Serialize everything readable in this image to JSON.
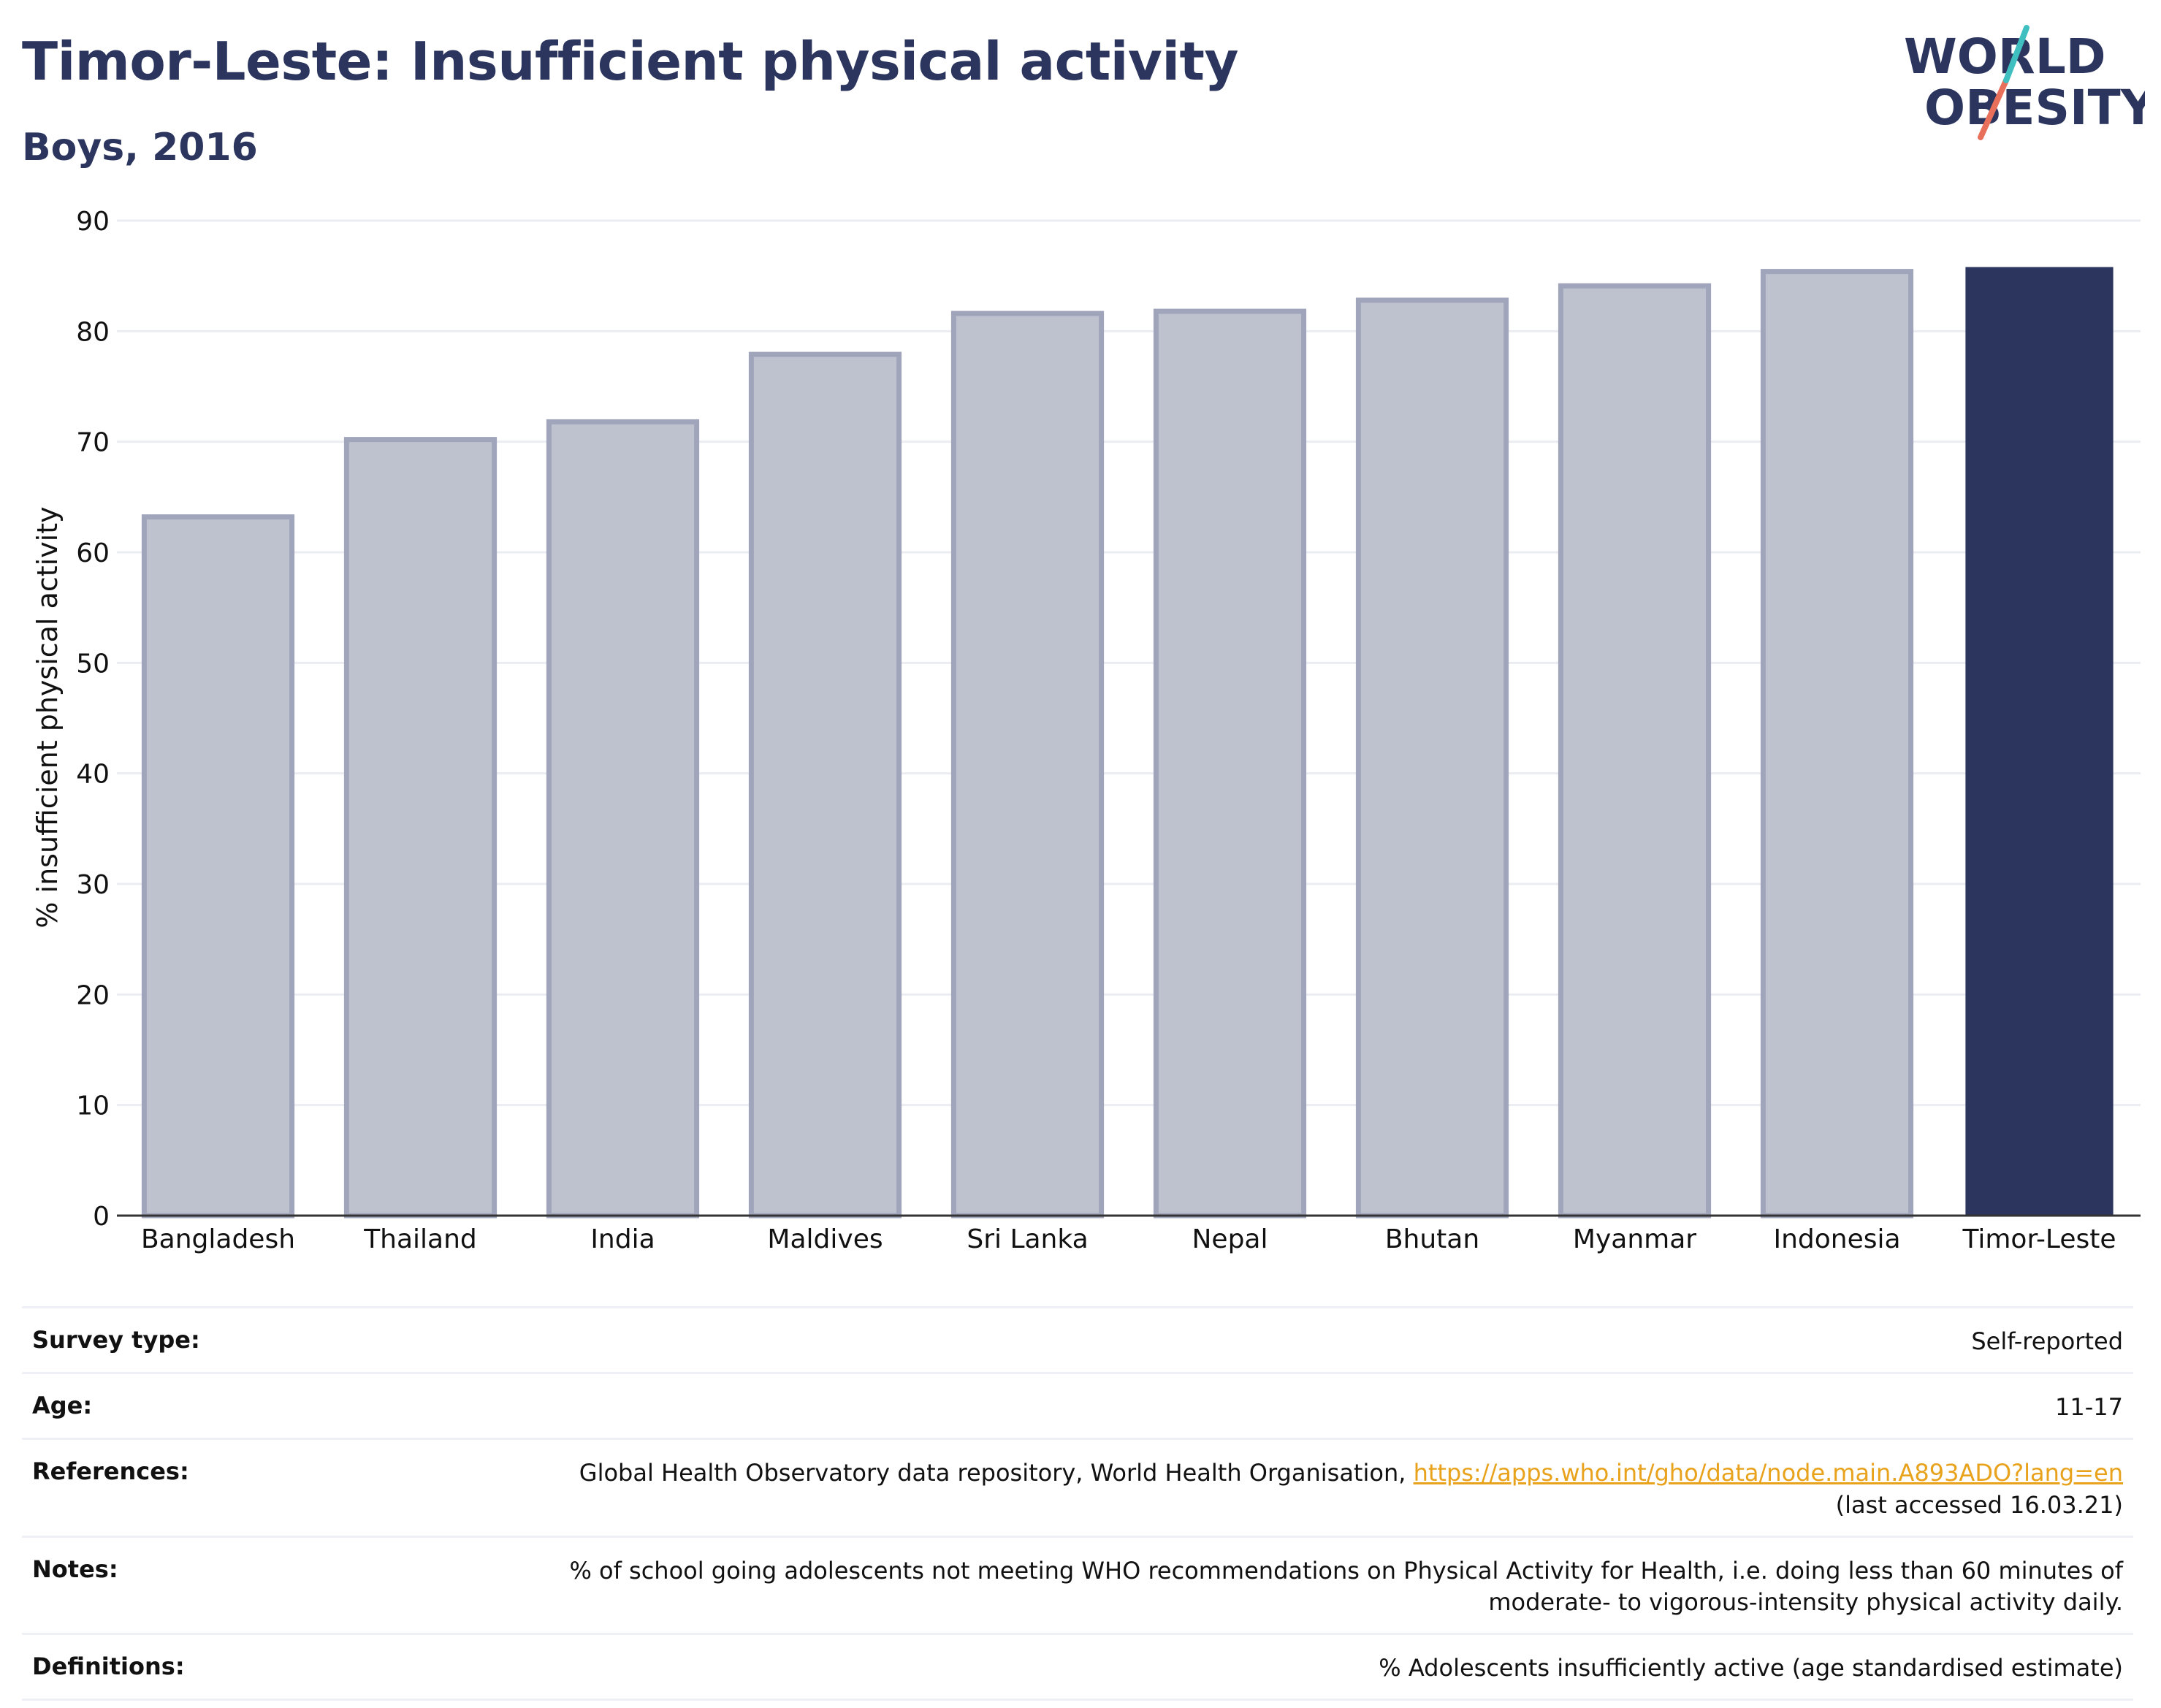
{
  "header": {
    "title": "Timor-Leste: Insufficient physical activity",
    "subtitle": "Boys, 2016"
  },
  "logo": {
    "line1": "WORLD",
    "line2": "OBESITY"
  },
  "chart_data": {
    "type": "bar",
    "categories": [
      "Bangladesh",
      "Thailand",
      "India",
      "Maldives",
      "Sri Lanka",
      "Nepal",
      "Bhutan",
      "Myanmar",
      "Indonesia",
      "Timor-Leste"
    ],
    "values": [
      63.2,
      70.2,
      71.8,
      77.9,
      81.6,
      81.8,
      82.8,
      84.1,
      85.4,
      85.8
    ],
    "highlight": "Timor-Leste",
    "title": "",
    "xlabel": "",
    "ylabel": "% insufficient physical activity",
    "ylim": [
      0,
      90
    ],
    "yticks": [
      0,
      10,
      20,
      30,
      40,
      50,
      60,
      70,
      80,
      90
    ],
    "grid": true,
    "colors": {
      "bar": "#bec1ce",
      "bar_border": "#a0a5bb",
      "highlight": "#2b355e",
      "grid": "#ebedf2"
    }
  },
  "meta": {
    "survey_type": {
      "label": "Survey type:",
      "value": "Self-reported"
    },
    "age": {
      "label": "Age:",
      "value": "11-17"
    },
    "references": {
      "label": "References:",
      "text": "Global Health Observatory data repository, World Health Organisation, ",
      "link": "https://apps.who.int/gho/data/node.main.A893ADO?lang=en",
      "accessed": "(last accessed 16.03.21)"
    },
    "notes": {
      "label": "Notes:",
      "line1": "% of school going adolescents not meeting WHO recommendations on Physical Activity for Health, i.e. doing less than 60 minutes of",
      "line2": "moderate- to vigorous-intensity physical activity daily."
    },
    "definitions": {
      "label": "Definitions:",
      "value": "% Adolescents insufficiently active (age standardised estimate)"
    }
  }
}
